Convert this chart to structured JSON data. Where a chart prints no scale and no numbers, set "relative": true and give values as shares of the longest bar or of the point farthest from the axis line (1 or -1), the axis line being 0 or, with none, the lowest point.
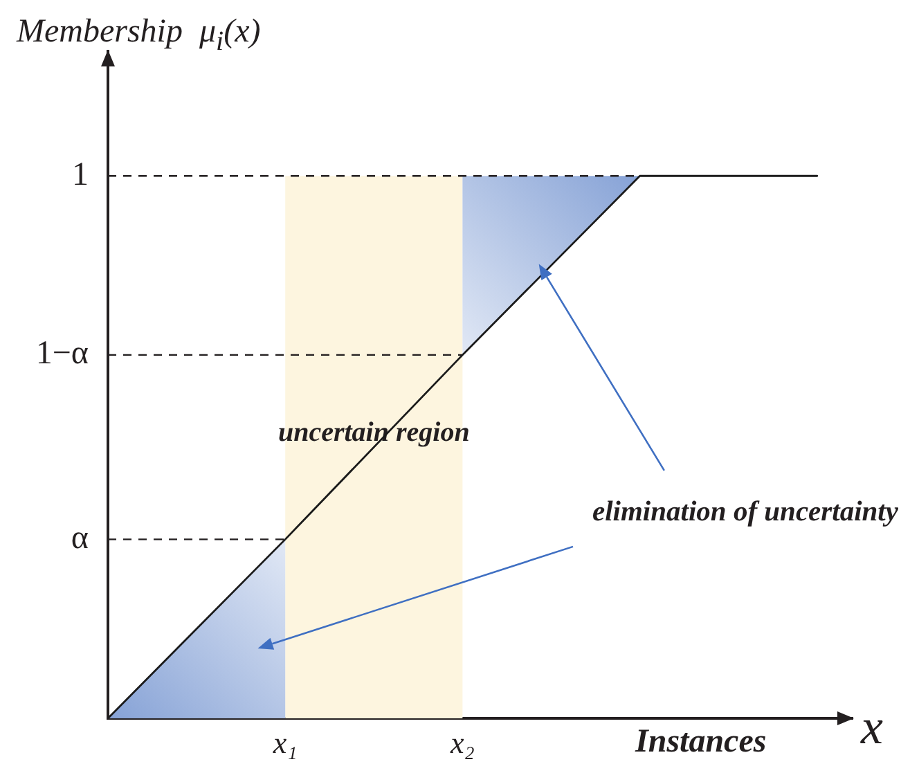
{
  "chart_data": {
    "type": "line",
    "relative": true,
    "xlabel": "Instances",
    "ylabel": "Membership  μ$_{i}$(x)",
    "categories": [
      null,
      "x₁",
      "x₂",
      null,
      null
    ],
    "series": [
      {
        "type": "area",
        "color": "#86a2d6",
        "values": [
          0,
          0.33,
          null,
          null,
          null
        ]
      },
      {
        "type": "area",
        "color": "#86a2d6",
        "values": [
          null,
          null,
          1,
          1,
          null
        ]
      },
      {
        "color": "#1a1a1a",
        "values": [
          0,
          0.33,
          0.67,
          1,
          1
        ]
      }
    ],
    "bands": [
      {
        "axis": "x",
        "from": "x₁",
        "to": "x₂",
        "label": "uncertain region",
        "color": "#fdf5df"
      }
    ],
    "ref_lines": [
      {
        "axis": "y",
        "value": 0.33,
        "label": "α",
        "line_style": "dashed"
      },
      {
        "axis": "y",
        "value": 0.67,
        "label": "1−α",
        "line_style": "dashed"
      },
      {
        "axis": "y",
        "value": 1,
        "label": "1",
        "line_style": "dashed"
      }
    ],
    "annotations": [
      "elimination of uncertainty",
      "x"
    ],
    "marker": "none",
    "grid": false,
    "legend": false
  }
}
